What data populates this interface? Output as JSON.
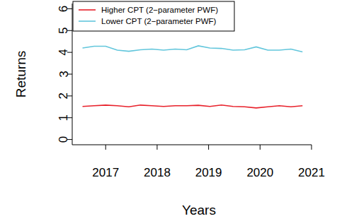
{
  "chart_data": {
    "type": "line",
    "x_label": "Years",
    "y_label": "Returns",
    "x": [
      2016.55,
      2016.775,
      2017.0,
      2017.225,
      2017.45,
      2017.675,
      2017.9,
      2018.125,
      2018.35,
      2018.575,
      2018.8,
      2019.025,
      2019.25,
      2019.475,
      2019.7,
      2019.925,
      2020.15,
      2020.375,
      2020.6,
      2020.825
    ],
    "series": [
      {
        "name": "Higher CPT (2−parameter PWF)",
        "color": "#e8202a",
        "values": [
          1.52,
          1.55,
          1.58,
          1.55,
          1.5,
          1.58,
          1.55,
          1.52,
          1.55,
          1.55,
          1.57,
          1.52,
          1.58,
          1.52,
          1.5,
          1.45,
          1.5,
          1.55,
          1.5,
          1.55
        ]
      },
      {
        "name": "Lower CPT (2−parameter PWF)",
        "color": "#62c6dc",
        "values": [
          4.2,
          4.28,
          4.28,
          4.1,
          4.05,
          4.12,
          4.15,
          4.1,
          4.15,
          4.12,
          4.3,
          4.2,
          4.18,
          4.1,
          4.12,
          4.25,
          4.1,
          4.1,
          4.15,
          4.02
        ]
      }
    ],
    "xlim": [
      2016.35,
      2021.0
    ],
    "xticks": [
      2017,
      2018,
      2019,
      2020,
      2021
    ],
    "ylim": [
      -0.24,
      6.24
    ],
    "yticks": [
      0,
      1,
      2,
      3,
      4,
      5,
      6
    ],
    "legend": "top-left",
    "grid": false
  }
}
